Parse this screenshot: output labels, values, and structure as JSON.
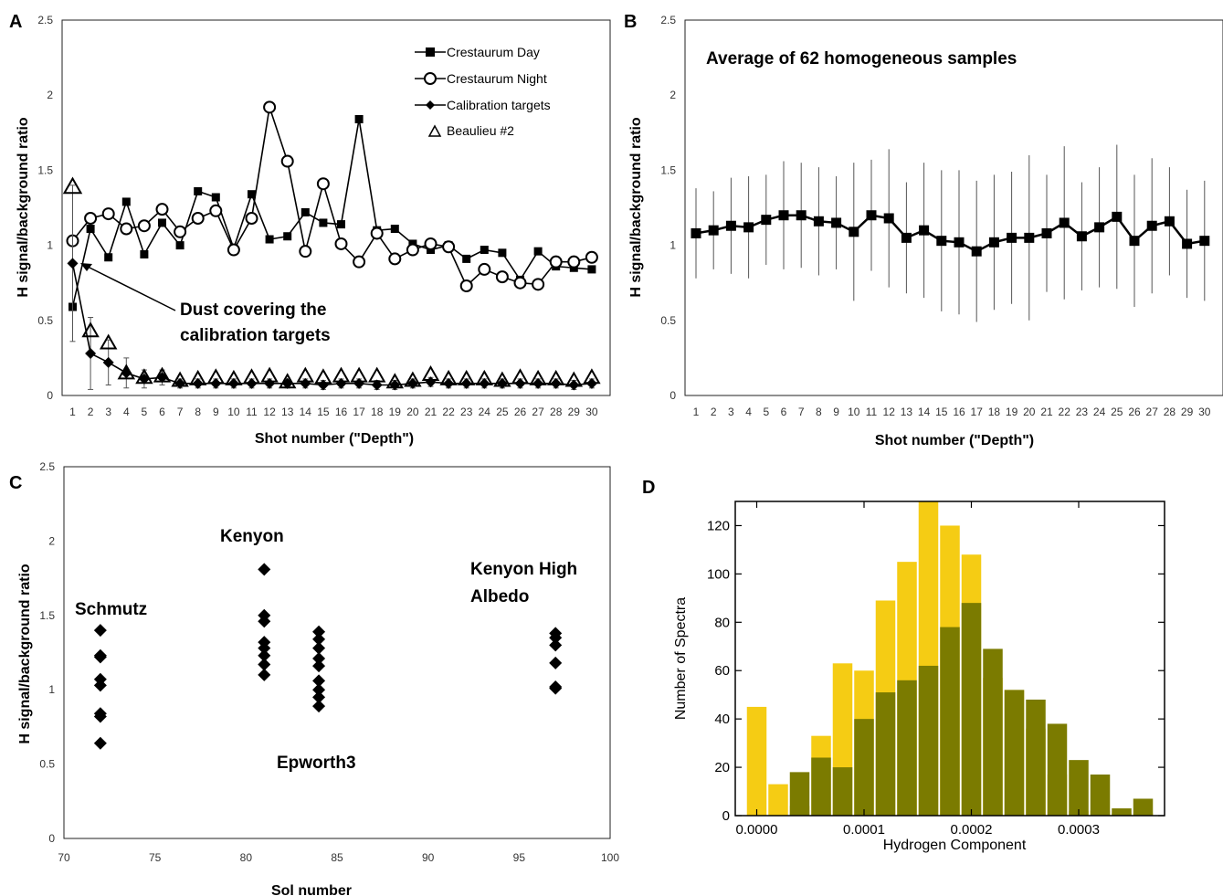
{
  "chart_data": [
    {
      "panel": "A",
      "type": "line",
      "xlabel": "Shot number (\"Depth\")",
      "ylabel": "H  signal/background ratio",
      "ylim": [
        0,
        2.5
      ],
      "yticks": [
        "0",
        "0.5",
        "1",
        "1.5",
        "2",
        "2.5"
      ],
      "x": [
        1,
        2,
        3,
        4,
        5,
        6,
        7,
        8,
        9,
        10,
        11,
        12,
        13,
        14,
        15,
        16,
        17,
        18,
        19,
        20,
        21,
        22,
        23,
        24,
        25,
        26,
        27,
        28,
        29,
        30
      ],
      "grid": false,
      "legend": "top-right",
      "series": [
        {
          "name": "Crestaurum Day",
          "marker": "square",
          "values": [
            0.59,
            1.11,
            0.92,
            1.29,
            0.94,
            1.15,
            1.0,
            1.36,
            1.32,
            0.98,
            1.34,
            1.04,
            1.06,
            1.22,
            1.15,
            1.14,
            1.84,
            1.1,
            1.11,
            1.01,
            0.97,
            1.0,
            0.91,
            0.97,
            0.95,
            0.77,
            0.96,
            0.86,
            0.85,
            0.84
          ]
        },
        {
          "name": "Crestaurum Night",
          "marker": "circle",
          "values": [
            1.03,
            1.18,
            1.21,
            1.11,
            1.13,
            1.24,
            1.09,
            1.18,
            1.23,
            0.97,
            1.18,
            1.92,
            1.56,
            0.96,
            1.41,
            1.01,
            0.89,
            1.08,
            0.91,
            0.97,
            1.01,
            0.99,
            0.73,
            0.84,
            0.79,
            0.75,
            0.74,
            0.89,
            0.89,
            0.92
          ]
        },
        {
          "name": "Calibration targets",
          "marker": "diamond",
          "values": [
            0.88,
            0.28,
            0.22,
            0.15,
            0.11,
            0.12,
            0.08,
            0.08,
            0.08,
            0.08,
            0.08,
            0.08,
            0.08,
            0.08,
            0.07,
            0.08,
            0.08,
            0.07,
            0.07,
            0.08,
            0.09,
            0.08,
            0.08,
            0.08,
            0.08,
            0.08,
            0.08,
            0.08,
            0.07,
            0.08
          ],
          "errors": [
            0.52,
            0.24,
            0.15,
            0.1,
            0.06,
            0.05,
            0.03,
            0.03,
            0.03,
            0.03,
            0.03,
            0.03,
            0.03,
            0.03,
            0.03,
            0.03,
            0.03,
            0.03,
            0.03,
            0.03,
            0.03,
            0.03,
            0.03,
            0.03,
            0.03,
            0.03,
            0.03,
            0.03,
            0.03,
            0.03
          ]
        },
        {
          "name": "Beaulieu #2",
          "marker": "triangle",
          "values": [
            1.39,
            0.43,
            0.35,
            0.15,
            0.12,
            0.13,
            0.1,
            0.11,
            0.12,
            0.11,
            0.12,
            0.13,
            0.09,
            0.13,
            0.12,
            0.13,
            0.13,
            0.13,
            0.09,
            0.1,
            0.14,
            0.11,
            0.11,
            0.11,
            0.1,
            0.12,
            0.11,
            0.11,
            0.1,
            0.12
          ]
        }
      ],
      "annotation": {
        "line1": "Dust covering the",
        "line2": "calibration targets"
      }
    },
    {
      "panel": "B",
      "type": "line",
      "title": "Average of 62 homogeneous samples",
      "xlabel": "Shot number (\"Depth\")",
      "ylabel": "H signal/background ratio",
      "ylim": [
        0,
        2.5
      ],
      "yticks": [
        "0",
        "0.5",
        "1",
        "1.5",
        "2",
        "2.5"
      ],
      "x": [
        1,
        2,
        3,
        4,
        5,
        6,
        7,
        8,
        9,
        10,
        11,
        12,
        13,
        14,
        15,
        16,
        17,
        18,
        19,
        20,
        21,
        22,
        23,
        24,
        25,
        26,
        27,
        28,
        29,
        30
      ],
      "grid": false,
      "series": [
        {
          "marker": "square",
          "values": [
            1.08,
            1.1,
            1.13,
            1.12,
            1.17,
            1.2,
            1.2,
            1.16,
            1.15,
            1.09,
            1.2,
            1.18,
            1.05,
            1.1,
            1.03,
            1.02,
            0.96,
            1.02,
            1.05,
            1.05,
            1.08,
            1.15,
            1.06,
            1.12,
            1.19,
            1.03,
            1.13,
            1.16,
            1.01,
            1.03
          ],
          "errors": [
            0.3,
            0.26,
            0.32,
            0.34,
            0.3,
            0.36,
            0.35,
            0.36,
            0.31,
            0.46,
            0.37,
            0.46,
            0.37,
            0.45,
            0.47,
            0.48,
            0.47,
            0.45,
            0.44,
            0.55,
            0.39,
            0.51,
            0.36,
            0.4,
            0.48,
            0.44,
            0.45,
            0.36,
            0.36,
            0.4
          ]
        }
      ]
    },
    {
      "panel": "C",
      "type": "scatter",
      "xlabel": "Sol number",
      "ylabel": "H signal/background ratio",
      "xlim": [
        70,
        100
      ],
      "ylim": [
        0,
        2.5
      ],
      "xticks": [
        "70",
        "75",
        "80",
        "85",
        "90",
        "95",
        "100"
      ],
      "yticks": [
        "0",
        "0.5",
        "1",
        "1.5",
        "2",
        "2.5"
      ],
      "grid": false,
      "points": [
        {
          "x": 72,
          "y": 1.4
        },
        {
          "x": 72,
          "y": 1.23
        },
        {
          "x": 72,
          "y": 1.22
        },
        {
          "x": 72,
          "y": 1.07
        },
        {
          "x": 72,
          "y": 1.03
        },
        {
          "x": 72,
          "y": 0.84
        },
        {
          "x": 72,
          "y": 0.82
        },
        {
          "x": 72,
          "y": 0.64
        },
        {
          "x": 81,
          "y": 1.81
        },
        {
          "x": 81,
          "y": 1.5
        },
        {
          "x": 81,
          "y": 1.46
        },
        {
          "x": 81,
          "y": 1.32
        },
        {
          "x": 81,
          "y": 1.28
        },
        {
          "x": 81,
          "y": 1.23
        },
        {
          "x": 81,
          "y": 1.17
        },
        {
          "x": 81,
          "y": 1.1
        },
        {
          "x": 84,
          "y": 1.39
        },
        {
          "x": 84,
          "y": 1.34
        },
        {
          "x": 84,
          "y": 1.28
        },
        {
          "x": 84,
          "y": 1.21
        },
        {
          "x": 84,
          "y": 1.16
        },
        {
          "x": 84,
          "y": 1.06
        },
        {
          "x": 84,
          "y": 1.0
        },
        {
          "x": 84,
          "y": 0.95
        },
        {
          "x": 84,
          "y": 0.89
        },
        {
          "x": 97,
          "y": 1.38
        },
        {
          "x": 97,
          "y": 1.35
        },
        {
          "x": 97,
          "y": 1.3
        },
        {
          "x": 97,
          "y": 1.18
        },
        {
          "x": 97,
          "y": 1.02
        },
        {
          "x": 97,
          "y": 1.01
        }
      ],
      "labels": {
        "schmutz": "Schmutz",
        "kenyon": "Kenyon",
        "epworth": "Epworth3",
        "khigh1": "Kenyon High",
        "khigh2": "Albedo"
      }
    },
    {
      "panel": "D",
      "type": "bar",
      "xlabel": "Hydrogen Component",
      "ylabel": "Number of Spectra",
      "xlim": [
        -2e-05,
        0.00038
      ],
      "ylim": [
        0,
        130
      ],
      "xticks": [
        "0.0000",
        "0.0001",
        "0.0002",
        "0.0003"
      ],
      "yticks": [
        "0",
        "20",
        "40",
        "60",
        "80",
        "100",
        "120"
      ],
      "bin_width": 2e-05,
      "series": [
        {
          "color": "#f5cc14",
          "x": [
            0.0,
            2e-05,
            4e-05,
            6e-05,
            8e-05,
            0.0001,
            0.00012,
            0.00014,
            0.00016,
            0.00018,
            0.0002,
            0.00022,
            0.00024,
            0.00026,
            0.00028,
            0.0003,
            0.00032,
            0.00034,
            0.00036
          ],
          "values": [
            45,
            13,
            4,
            33,
            63,
            60,
            89,
            105,
            130,
            120,
            108,
            57,
            52,
            36,
            17,
            2,
            2,
            1,
            1
          ]
        },
        {
          "color": "#7b7b00",
          "x": [
            4e-05,
            6e-05,
            8e-05,
            0.0001,
            0.00012,
            0.00014,
            0.00016,
            0.00018,
            0.0002,
            0.00022,
            0.00024,
            0.00026,
            0.00028,
            0.0003,
            0.00032,
            0.00034,
            0.00036
          ],
          "values": [
            18,
            24,
            20,
            40,
            51,
            56,
            62,
            78,
            88,
            69,
            52,
            48,
            38,
            23,
            17,
            3,
            7
          ]
        }
      ]
    }
  ]
}
